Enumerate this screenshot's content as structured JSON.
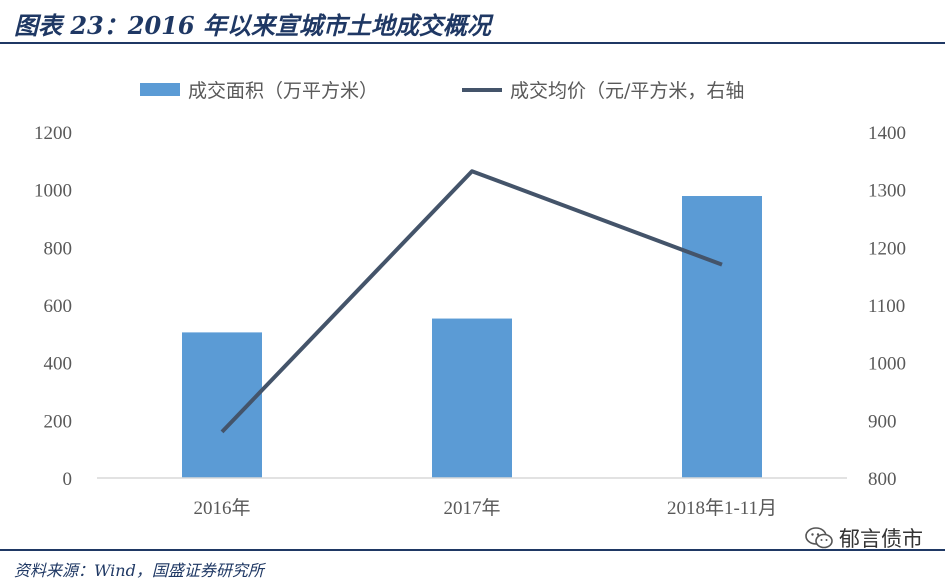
{
  "title": "图表 23：2016 年以来宣城市土地成交概况",
  "source": "资料来源：Wind，国盛证券研究所",
  "watermark": "郁言债市",
  "colors": {
    "bar": "#5b9bd5",
    "line": "#44546a",
    "title": "#1f3864",
    "axis_text": "#595959"
  },
  "chart_data": {
    "type": "bar",
    "categories": [
      "2016年",
      "2017年",
      "2018年1-11月"
    ],
    "series": [
      {
        "name": "成交面积（万平方米）",
        "type": "bar",
        "axis": "left",
        "values": [
          505,
          553,
          978
        ]
      },
      {
        "name": "成交均价（元/平方米，右轴",
        "type": "line",
        "axis": "right",
        "values": [
          880,
          1332,
          1170
        ]
      }
    ],
    "left_axis": {
      "ylim": [
        0,
        1200
      ],
      "ticks": [
        "0",
        "200",
        "400",
        "600",
        "800",
        "1000",
        "1200"
      ]
    },
    "right_axis": {
      "ylim": [
        800,
        1400
      ],
      "ticks": [
        "800",
        "900",
        "1000",
        "1100",
        "1200",
        "1300",
        "1400"
      ]
    },
    "legend_position": "top",
    "grid": false
  }
}
